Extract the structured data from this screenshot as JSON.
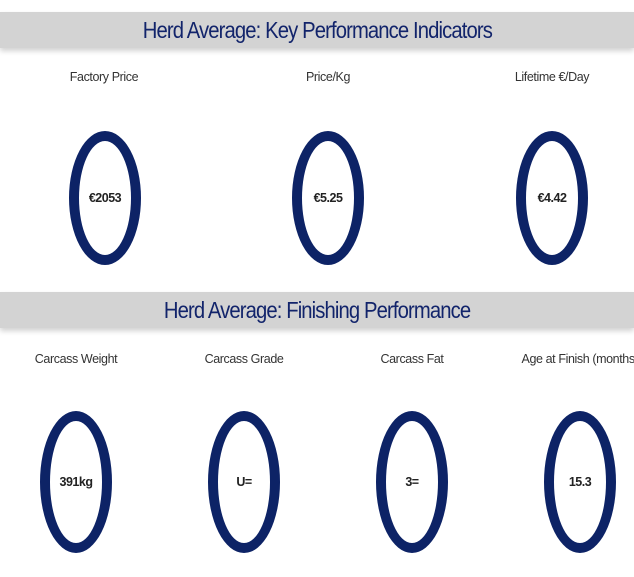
{
  "sections": [
    {
      "title": "Herd Average: Key Performance Indicators",
      "kpis": [
        {
          "label": "Factory Price",
          "value": "€2053"
        },
        {
          "label": "Price/Kg",
          "value": "€5.25"
        },
        {
          "label": "Lifetime €/Day",
          "value": "€4.42"
        }
      ]
    },
    {
      "title": "Herd Average: Finishing Performance",
      "kpis": [
        {
          "label": "Carcass Weight",
          "value": "391kg"
        },
        {
          "label": "Carcass Grade",
          "value": "U="
        },
        {
          "label": "Carcass Fat",
          "value": "3="
        },
        {
          "label": "Age at Finish (months)",
          "value": "15.3"
        }
      ]
    }
  ],
  "colors": {
    "ring": "#0d2366",
    "banner_bg": "#d3d3d3",
    "banner_text": "#12246b"
  }
}
